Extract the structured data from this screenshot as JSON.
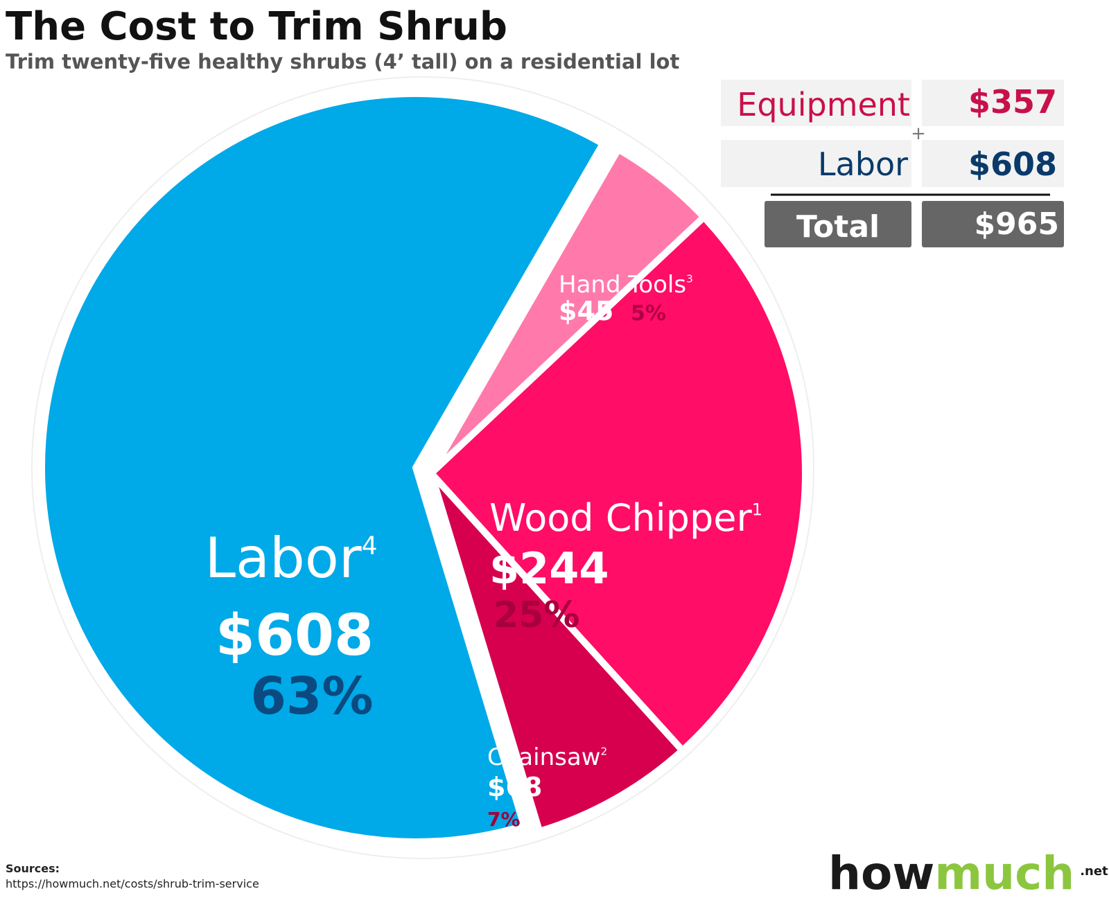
{
  "chart_data": {
    "type": "pie",
    "title": "The Cost to Trim Shrub",
    "subtitle": "Trim twenty-five healthy shrubs (4’ tall) on a residential lot",
    "categories": [
      "Labor",
      "Hand Tools",
      "Wood Chipper",
      "Chainsaw"
    ],
    "notes": [
      "4",
      "3",
      "1",
      "2"
    ],
    "values": [
      608,
      45,
      244,
      68
    ],
    "value_labels": [
      "$608",
      "$45",
      "$244",
      "$68"
    ],
    "colors": [
      "#00a9e8",
      "#ff7aaa",
      "#ff0d66",
      "#d6004f"
    ],
    "shares": {
      "values": [
        63,
        5,
        25,
        7
      ],
      "value_labels": [
        "63%",
        "5%",
        "25%",
        "7%"
      ],
      "colors": [
        "#0a4a80",
        "#b0004a",
        "#a8003d",
        "#a0003a"
      ]
    }
  },
  "summary": {
    "rows": [
      [
        "Equipment",
        "$357"
      ],
      [
        "Labor",
        "$608"
      ]
    ],
    "operator": "+",
    "total": [
      "Total",
      "$965"
    ]
  },
  "sources": {
    "label": "Sources:",
    "url": "https://howmuch.net/costs/shrub-trim-service"
  },
  "logo": {
    "primary": "how",
    "accent": "much",
    "suffix": ".net"
  }
}
